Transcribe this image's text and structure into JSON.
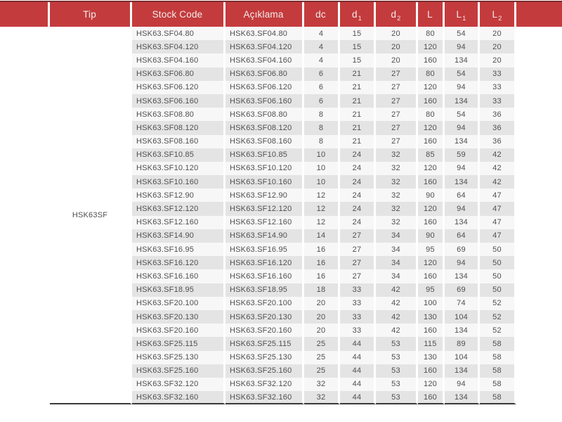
{
  "table": {
    "tip_group_label": "HSK63SF",
    "columns": [
      {
        "label": "Tip",
        "sub": ""
      },
      {
        "label": "Stock Code",
        "sub": ""
      },
      {
        "label": "Açıklama",
        "sub": ""
      },
      {
        "label": "dc",
        "sub": ""
      },
      {
        "label": "d",
        "sub": "1"
      },
      {
        "label": "d",
        "sub": "2"
      },
      {
        "label": "L",
        "sub": ""
      },
      {
        "label": "L",
        "sub": "1"
      },
      {
        "label": "L",
        "sub": "2"
      }
    ],
    "rows": [
      {
        "stock_code": "HSK63.SF04.80",
        "aciklama": "HSK63.SF04.80",
        "dc": "4",
        "d1": "15",
        "d2": "20",
        "L": "80",
        "L1": "54",
        "L2": "20"
      },
      {
        "stock_code": "HSK63.SF04.120",
        "aciklama": "HSK63.SF04.120",
        "dc": "4",
        "d1": "15",
        "d2": "20",
        "L": "120",
        "L1": "94",
        "L2": "20"
      },
      {
        "stock_code": "HSK63.SF04.160",
        "aciklama": "HSK63.SF04.160",
        "dc": "4",
        "d1": "15",
        "d2": "20",
        "L": "160",
        "L1": "134",
        "L2": "20"
      },
      {
        "stock_code": "HSK63.SF06.80",
        "aciklama": "HSK63.SF06.80",
        "dc": "6",
        "d1": "21",
        "d2": "27",
        "L": "80",
        "L1": "54",
        "L2": "33"
      },
      {
        "stock_code": "HSK63.SF06.120",
        "aciklama": "HSK63.SF06.120",
        "dc": "6",
        "d1": "21",
        "d2": "27",
        "L": "120",
        "L1": "94",
        "L2": "33"
      },
      {
        "stock_code": "HSK63.SF06.160",
        "aciklama": "HSK63.SF06.160",
        "dc": "6",
        "d1": "21",
        "d2": "27",
        "L": "160",
        "L1": "134",
        "L2": "33"
      },
      {
        "stock_code": "HSK63.SF08.80",
        "aciklama": "HSK63.SF08.80",
        "dc": "8",
        "d1": "21",
        "d2": "27",
        "L": "80",
        "L1": "54",
        "L2": "36"
      },
      {
        "stock_code": "HSK63.SF08.120",
        "aciklama": "HSK63.SF08.120",
        "dc": "8",
        "d1": "21",
        "d2": "27",
        "L": "120",
        "L1": "94",
        "L2": "36"
      },
      {
        "stock_code": "HSK63.SF08.160",
        "aciklama": "HSK63.SF08.160",
        "dc": "8",
        "d1": "21",
        "d2": "27",
        "L": "160",
        "L1": "134",
        "L2": "36"
      },
      {
        "stock_code": "HSK63.SF10.85",
        "aciklama": "HSK63.SF10.85",
        "dc": "10",
        "d1": "24",
        "d2": "32",
        "L": "85",
        "L1": "59",
        "L2": "42"
      },
      {
        "stock_code": "HSK63.SF10.120",
        "aciklama": "HSK63.SF10.120",
        "dc": "10",
        "d1": "24",
        "d2": "32",
        "L": "120",
        "L1": "94",
        "L2": "42"
      },
      {
        "stock_code": "HSK63.SF10.160",
        "aciklama": "HSK63.SF10.160",
        "dc": "10",
        "d1": "24",
        "d2": "32",
        "L": "160",
        "L1": "134",
        "L2": "42"
      },
      {
        "stock_code": "HSK63.SF12.90",
        "aciklama": "HSK63.SF12.90",
        "dc": "12",
        "d1": "24",
        "d2": "32",
        "L": "90",
        "L1": "64",
        "L2": "47"
      },
      {
        "stock_code": "HSK63.SF12.120",
        "aciklama": "HSK63.SF12.120",
        "dc": "12",
        "d1": "24",
        "d2": "32",
        "L": "120",
        "L1": "94",
        "L2": "47"
      },
      {
        "stock_code": "HSK63.SF12.160",
        "aciklama": "HSK63.SF12.160",
        "dc": "12",
        "d1": "24",
        "d2": "32",
        "L": "160",
        "L1": "134",
        "L2": "47"
      },
      {
        "stock_code": "HSK63.SF14.90",
        "aciklama": "HSK63.SF14.90",
        "dc": "14",
        "d1": "27",
        "d2": "34",
        "L": "90",
        "L1": "64",
        "L2": "47"
      },
      {
        "stock_code": "HSK63.SF16.95",
        "aciklama": "HSK63.SF16.95",
        "dc": "16",
        "d1": "27",
        "d2": "34",
        "L": "95",
        "L1": "69",
        "L2": "50"
      },
      {
        "stock_code": "HSK63.SF16.120",
        "aciklama": "HSK63.SF16.120",
        "dc": "16",
        "d1": "27",
        "d2": "34",
        "L": "120",
        "L1": "94",
        "L2": "50"
      },
      {
        "stock_code": "HSK63.SF16.160",
        "aciklama": "HSK63.SF16.160",
        "dc": "16",
        "d1": "27",
        "d2": "34",
        "L": "160",
        "L1": "134",
        "L2": "50"
      },
      {
        "stock_code": "HSK63.SF18.95",
        "aciklama": "HSK63.SF18.95",
        "dc": "18",
        "d1": "33",
        "d2": "42",
        "L": "95",
        "L1": "69",
        "L2": "50"
      },
      {
        "stock_code": "HSK63.SF20.100",
        "aciklama": "HSK63.SF20.100",
        "dc": "20",
        "d1": "33",
        "d2": "42",
        "L": "100",
        "L1": "74",
        "L2": "52"
      },
      {
        "stock_code": "HSK63.SF20.130",
        "aciklama": "HSK63.SF20.130",
        "dc": "20",
        "d1": "33",
        "d2": "42",
        "L": "130",
        "L1": "104",
        "L2": "52"
      },
      {
        "stock_code": "HSK63.SF20.160",
        "aciklama": "HSK63.SF20.160",
        "dc": "20",
        "d1": "33",
        "d2": "42",
        "L": "160",
        "L1": "134",
        "L2": "52"
      },
      {
        "stock_code": "HSK63.SF25.115",
        "aciklama": "HSK63.SF25.115",
        "dc": "25",
        "d1": "44",
        "d2": "53",
        "L": "115",
        "L1": "89",
        "L2": "58"
      },
      {
        "stock_code": "HSK63.SF25.130",
        "aciklama": "HSK63.SF25.130",
        "dc": "25",
        "d1": "44",
        "d2": "53",
        "L": "130",
        "L1": "104",
        "L2": "58"
      },
      {
        "stock_code": "HSK63.SF25.160",
        "aciklama": "HSK63.SF25.160",
        "dc": "25",
        "d1": "44",
        "d2": "53",
        "L": "160",
        "L1": "134",
        "L2": "58"
      },
      {
        "stock_code": "HSK63.SF32.120",
        "aciklama": "HSK63.SF32.120",
        "dc": "32",
        "d1": "44",
        "d2": "53",
        "L": "120",
        "L1": "94",
        "L2": "58"
      },
      {
        "stock_code": "HSK63.SF32.160",
        "aciklama": "HSK63.SF32.160",
        "dc": "32",
        "d1": "44",
        "d2": "53",
        "L": "160",
        "L1": "134",
        "L2": "58"
      }
    ]
  },
  "colors": {
    "header_red": "#C43B3D",
    "header_text": "#F2ECEC",
    "column_separator": "#FFFFFF",
    "row_base": "#F7F7F7",
    "row_stripe": "#E4E4E4",
    "body_text": "#4F4F4F",
    "top_border": "#7D2B2D",
    "bottom_border": "#3A3A3A"
  }
}
